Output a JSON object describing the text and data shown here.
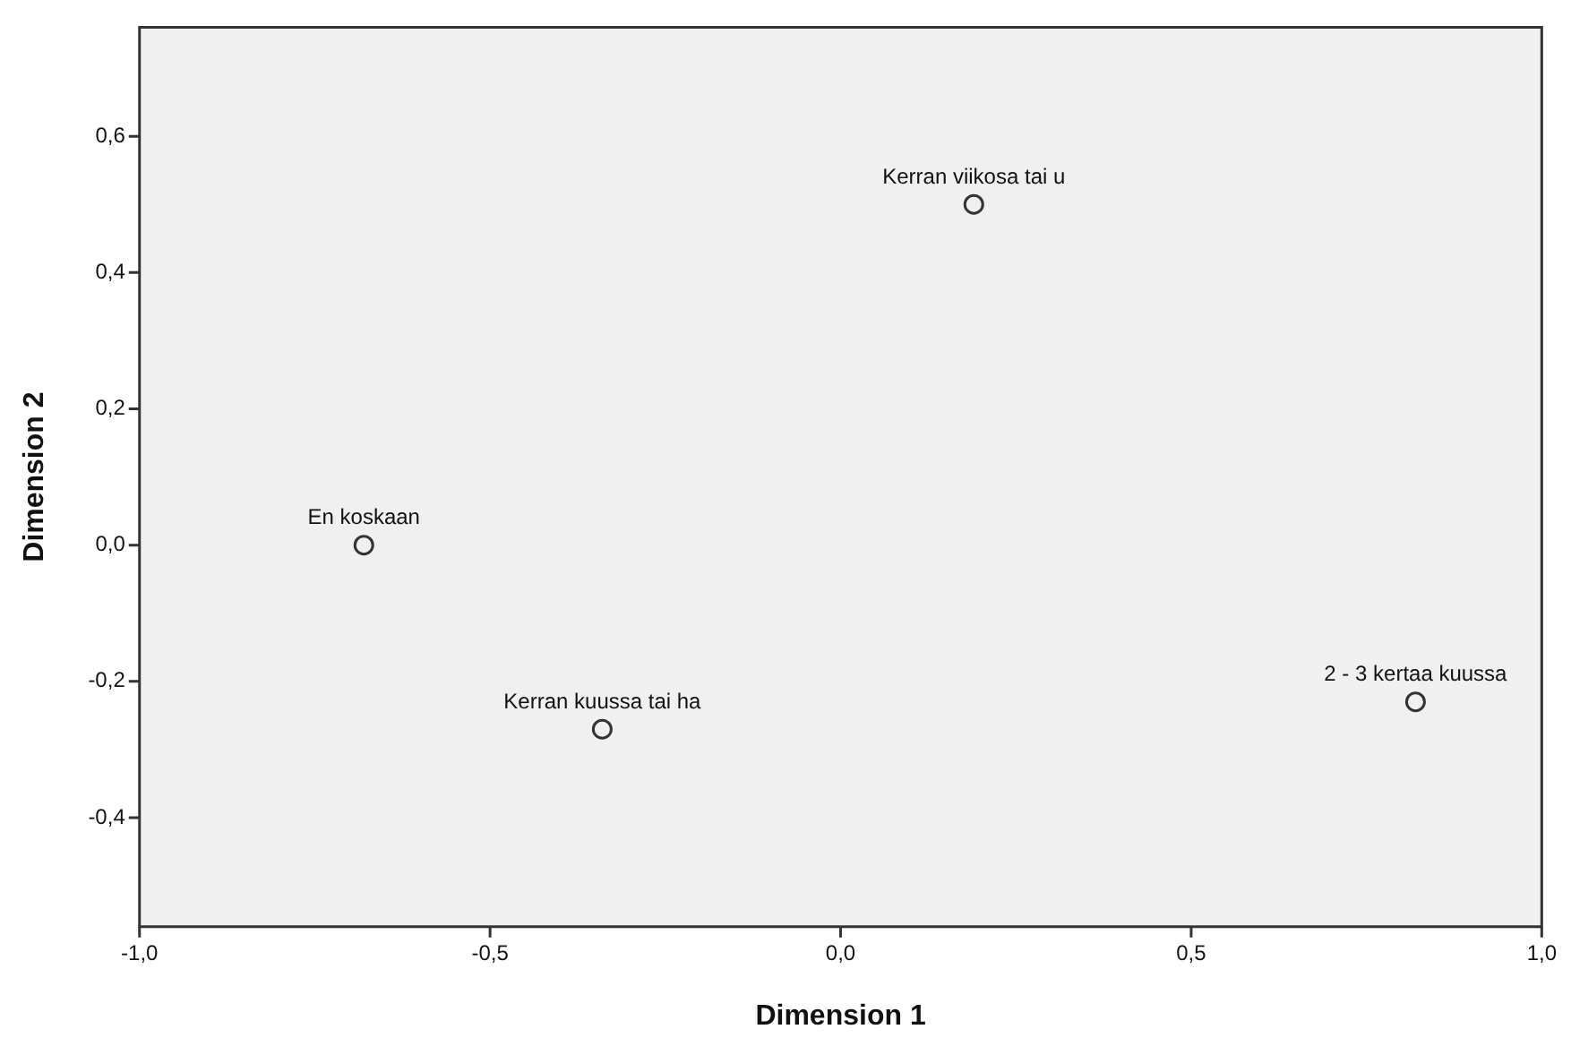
{
  "chart_data": {
    "type": "scatter",
    "xlabel": "Dimension 1",
    "ylabel": "Dimension 2",
    "xlim": [
      -1.0,
      1.0
    ],
    "ylim": [
      -0.56,
      0.76
    ],
    "xticks": [
      {
        "value": -1.0,
        "label": "-1,0"
      },
      {
        "value": -0.5,
        "label": "-0,5"
      },
      {
        "value": 0.0,
        "label": "0,0"
      },
      {
        "value": 0.5,
        "label": "0,5"
      },
      {
        "value": 1.0,
        "label": "1,0"
      }
    ],
    "yticks": [
      {
        "value": -0.4,
        "label": "-0,4"
      },
      {
        "value": -0.2,
        "label": "-0,2"
      },
      {
        "value": 0.0,
        "label": "0,0"
      },
      {
        "value": 0.2,
        "label": "0,2"
      },
      {
        "value": 0.4,
        "label": "0,4"
      },
      {
        "value": 0.6,
        "label": "0,6"
      }
    ],
    "grid": false,
    "legend": false,
    "marker": "circle",
    "series": [
      {
        "name": "En koskaan",
        "color": "#333333",
        "x": [
          -0.68
        ],
        "values": [
          0.0
        ]
      },
      {
        "name": "Kerran viikosa tai u",
        "color": "#333333",
        "x": [
          0.19
        ],
        "values": [
          0.5
        ]
      },
      {
        "name": "Kerran kuussa tai ha",
        "color": "#333333",
        "x": [
          -0.34
        ],
        "values": [
          -0.27
        ]
      },
      {
        "name": "2 - 3 kertaa kuussa",
        "color": "#333333",
        "x": [
          0.82
        ],
        "values": [
          -0.23
        ]
      }
    ]
  }
}
